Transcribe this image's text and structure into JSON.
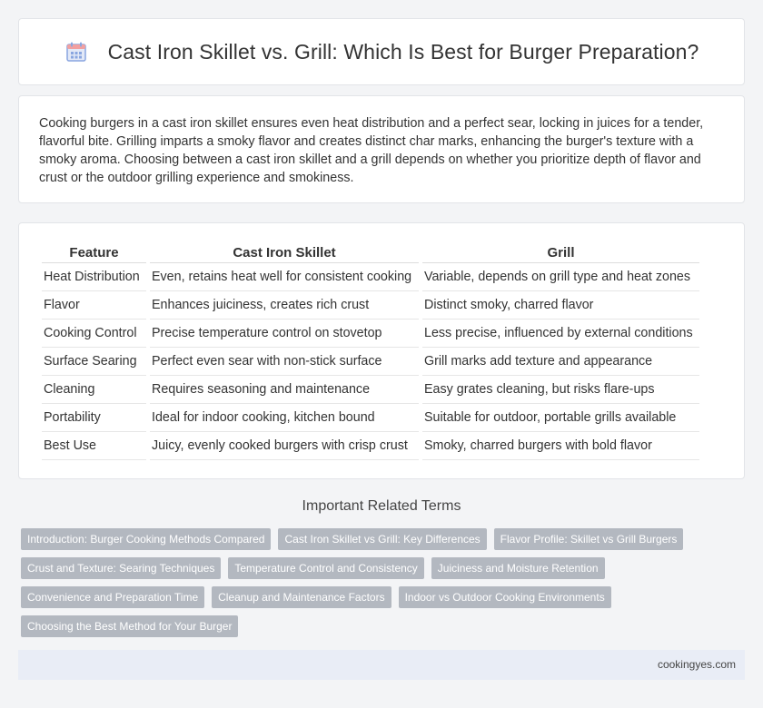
{
  "header": {
    "title": "Cast Iron Skillet vs. Grill: Which Is Best for Burger Preparation?",
    "icon": "calendar-icon",
    "icon_color": "#8aa6e0"
  },
  "intro": {
    "text": "Cooking burgers in a cast iron skillet ensures even heat distribution and a perfect sear, locking in juices for a tender, flavorful bite. Grilling imparts a smoky flavor and creates distinct char marks, enhancing the burger's texture with a smoky aroma. Choosing between a cast iron skillet and a grill depends on whether you prioritize depth of flavor and crust or the outdoor grilling experience and smokiness."
  },
  "table": {
    "headers": [
      "Feature",
      "Cast Iron Skillet",
      "Grill"
    ],
    "rows": [
      [
        "Heat Distribution",
        "Even, retains heat well for consistent cooking",
        "Variable, depends on grill type and heat zones"
      ],
      [
        "Flavor",
        "Enhances juiciness, creates rich crust",
        "Distinct smoky, charred flavor"
      ],
      [
        "Cooking Control",
        "Precise temperature control on stovetop",
        "Less precise, influenced by external conditions"
      ],
      [
        "Surface Searing",
        "Perfect even sear with non-stick surface",
        "Grill marks add texture and appearance"
      ],
      [
        "Cleaning",
        "Requires seasoning and maintenance",
        "Easy grates cleaning, but risks flare-ups"
      ],
      [
        "Portability",
        "Ideal for indoor cooking, kitchen bound",
        "Suitable for outdoor, portable grills available"
      ],
      [
        "Best Use",
        "Juicy, evenly cooked burgers with crisp crust",
        "Smoky, charred burgers with bold flavor"
      ]
    ]
  },
  "related": {
    "title": "Important Related Terms",
    "terms": [
      "Introduction: Burger Cooking Methods Compared",
      "Cast Iron Skillet vs Grill: Key Differences",
      "Flavor Profile: Skillet vs Grill Burgers",
      "Crust and Texture: Searing Techniques",
      "Temperature Control and Consistency",
      "Juiciness and Moisture Retention",
      "Convenience and Preparation Time",
      "Cleanup and Maintenance Factors",
      "Indoor vs Outdoor Cooking Environments",
      "Choosing the Best Method for Your Burger"
    ],
    "tag_color": "#b3b8c0"
  },
  "footer": {
    "site": "cookingyes.com"
  }
}
